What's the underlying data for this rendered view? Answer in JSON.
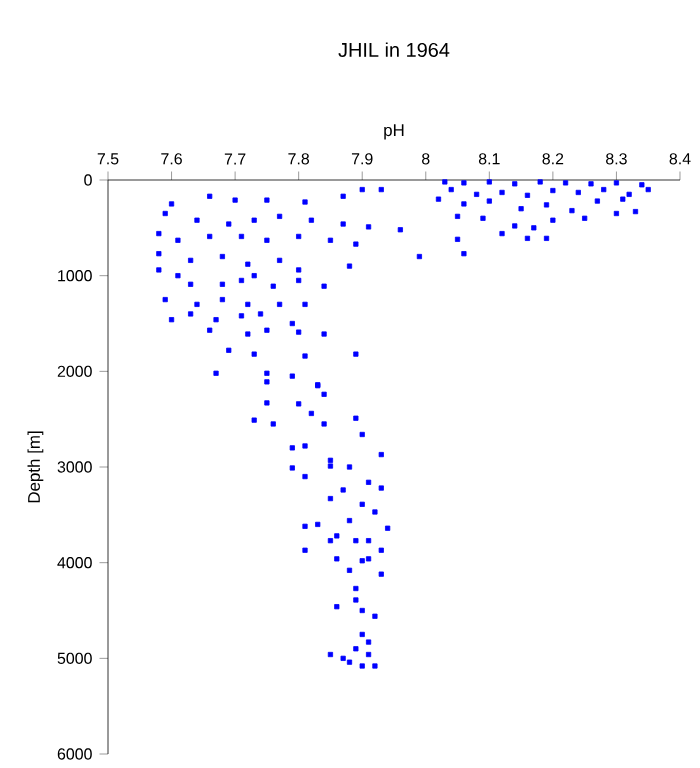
{
  "chart_data": {
    "type": "scatter",
    "title": "JHIL in 1964",
    "xlabel": "pH",
    "ylabel": "Depth [m]",
    "xlim": [
      7.5,
      8.4
    ],
    "xticks": [
      7.5,
      7.6,
      7.7,
      7.8,
      7.9,
      8,
      8.1,
      8.2,
      8.3,
      8.4
    ],
    "ylim": [
      6000,
      0
    ],
    "yticks": [
      0,
      1000,
      2000,
      3000,
      4000,
      5000,
      6000
    ],
    "marker": "square",
    "grid": false,
    "series": [
      {
        "color": "#0000ff",
        "x": [
          8.03,
          8.06,
          8.1,
          8.14,
          8.18,
          8.22,
          8.26,
          8.3,
          8.34,
          8.35,
          8.32,
          8.28,
          8.24,
          8.2,
          8.16,
          8.12,
          8.08,
          8.04,
          8.02,
          8.06,
          8.1,
          8.15,
          8.19,
          8.23,
          8.27,
          8.31,
          8.25,
          8.2,
          8.14,
          8.09,
          8.05,
          8.12,
          8.17,
          8.05,
          8.3,
          8.33,
          8.16,
          8.19,
          8.06,
          7.99,
          7.66,
          7.6,
          7.7,
          7.75,
          7.81,
          7.87,
          7.9,
          7.93,
          7.59,
          7.64,
          7.69,
          7.73,
          7.77,
          7.82,
          7.87,
          7.91,
          7.58,
          7.61,
          7.66,
          7.71,
          7.75,
          7.8,
          7.85,
          7.89,
          7.96,
          7.58,
          7.63,
          7.68,
          7.72,
          7.77,
          7.8,
          7.88,
          7.58,
          7.61,
          7.63,
          7.68,
          7.71,
          7.73,
          7.76,
          7.8,
          7.84,
          7.59,
          7.64,
          7.68,
          7.72,
          7.77,
          7.81,
          7.63,
          7.67,
          7.71,
          7.74,
          7.79,
          7.6,
          7.66,
          7.72,
          7.75,
          7.8,
          7.84,
          7.69,
          7.73,
          7.81,
          7.89,
          7.67,
          7.75,
          7.79,
          7.83,
          7.75,
          7.83,
          7.84,
          7.75,
          7.8,
          7.82,
          7.73,
          7.76,
          7.84,
          7.89,
          7.9,
          7.79,
          7.81,
          7.93,
          7.85,
          7.85,
          7.79,
          7.88,
          7.81,
          7.87,
          7.91,
          7.93,
          7.85,
          7.9,
          7.92,
          7.81,
          7.83,
          7.88,
          7.94,
          7.86,
          7.89,
          7.91,
          7.85,
          7.81,
          7.93,
          7.86,
          7.9,
          7.91,
          7.88,
          7.93,
          7.89,
          7.89,
          7.86,
          7.9,
          7.92,
          7.9,
          7.91,
          7.89,
          7.85,
          7.87,
          7.91,
          7.9,
          7.92,
          7.88
        ],
        "values": [
          20,
          30,
          20,
          40,
          20,
          30,
          40,
          30,
          50,
          100,
          150,
          100,
          130,
          110,
          160,
          130,
          150,
          100,
          200,
          250,
          220,
          300,
          260,
          320,
          220,
          200,
          400,
          420,
          480,
          400,
          380,
          560,
          500,
          620,
          350,
          330,
          610,
          610,
          770,
          800,
          170,
          250,
          210,
          210,
          230,
          170,
          100,
          100,
          350,
          420,
          460,
          420,
          380,
          420,
          460,
          490,
          560,
          630,
          590,
          590,
          630,
          590,
          630,
          670,
          520,
          770,
          840,
          800,
          880,
          840,
          940,
          900,
          940,
          1000,
          1090,
          1090,
          1050,
          1000,
          1110,
          1050,
          1110,
          1250,
          1300,
          1250,
          1300,
          1300,
          1300,
          1400,
          1460,
          1420,
          1400,
          1500,
          1460,
          1570,
          1610,
          1570,
          1590,
          1610,
          1780,
          1820,
          1840,
          1820,
          2020,
          2020,
          2050,
          2150,
          2110,
          2140,
          2240,
          2330,
          2340,
          2440,
          2510,
          2550,
          2550,
          2490,
          2660,
          2800,
          2780,
          2870,
          2990,
          2930,
          3010,
          3000,
          3100,
          3240,
          3160,
          3220,
          3330,
          3390,
          3470,
          3620,
          3600,
          3560,
          3640,
          3720,
          3770,
          3770,
          3770,
          3870,
          3870,
          3960,
          3980,
          3960,
          4080,
          4120,
          4270,
          4390,
          4460,
          4500,
          4560,
          4750,
          4830,
          4900,
          4960,
          5000,
          4960,
          5080,
          5080,
          5040
        ]
      }
    ]
  }
}
